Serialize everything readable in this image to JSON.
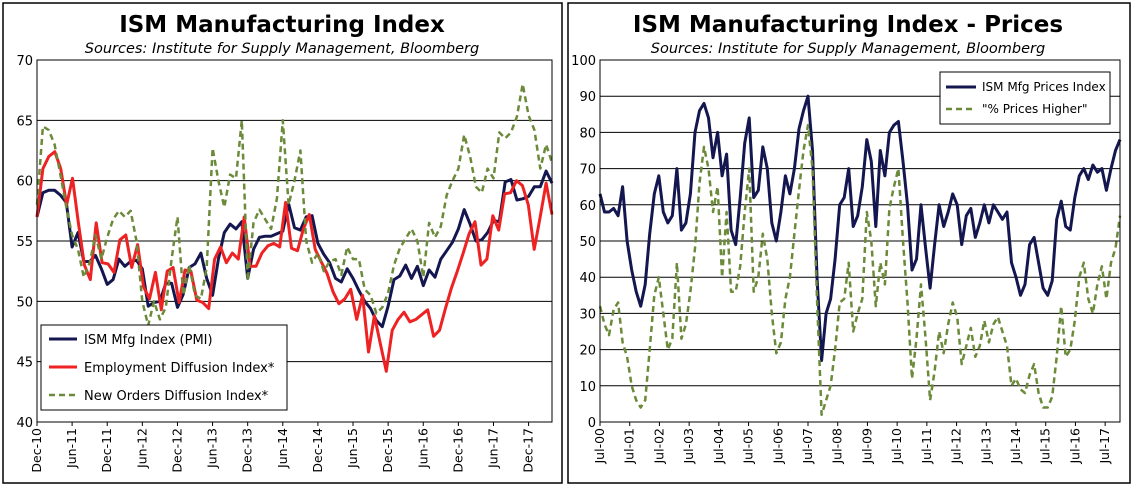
{
  "chart_data": [
    {
      "type": "line",
      "title": "ISM Manufacturing Index",
      "subtitle": "Sources: Institute for Supply Management, Bloomberg",
      "ylim": [
        40,
        70
      ],
      "yticks": [
        "40",
        "45",
        "50",
        "55",
        "60",
        "65",
        "70"
      ],
      "xticks": [
        "Dec-10",
        "Jun-11",
        "Dec-11",
        "Jun-12",
        "Dec-12",
        "Jun-13",
        "Dec-13",
        "Jun-14",
        "Dec-14",
        "Jun-15",
        "Dec-15",
        "Jun-16",
        "Dec-16",
        "Jun-17",
        "Dec-17"
      ],
      "x_start": "Dec-10",
      "x_span_months": 88,
      "grid": true,
      "legend_position": "bottom-left",
      "series": [
        {
          "name": "ISM Mfg Index (PMI)",
          "color": "#14174f",
          "dash": "",
          "width": 3,
          "values": [
            57.0,
            59.0,
            59.2,
            59.2,
            58.8,
            58.2,
            54.5,
            55.7,
            53.3,
            53.3,
            53.8,
            52.7,
            51.4,
            51.8,
            53.5,
            52.9,
            53.3,
            53.4,
            52.7,
            49.6,
            49.9,
            50.0,
            51.5,
            51.5,
            49.5,
            50.6,
            52.8,
            53.1,
            54.0,
            51.9,
            50.5,
            53.5,
            55.7,
            56.4,
            56.0,
            56.6,
            51.9,
            54.3,
            55.3,
            55.4,
            55.4,
            55.6,
            55.8,
            58.1,
            56.1,
            55.9,
            57.0,
            57.1,
            54.8,
            53.9,
            53.2,
            51.9,
            51.6,
            52.7,
            51.9,
            50.9,
            50.0,
            49.4,
            48.4,
            47.9,
            49.6,
            51.8,
            52.1,
            53.0,
            51.9,
            52.9,
            51.3,
            52.6,
            52.0,
            53.5,
            54.2,
            54.9,
            56.0,
            57.6,
            56.4,
            55.0,
            55.1,
            55.7,
            56.7,
            56.6,
            59.9,
            60.1,
            58.4,
            58.5,
            58.7,
            59.5,
            59.5,
            60.8,
            59.8
          ]
        },
        {
          "name": "Employment Diffusion Index*",
          "color": "#ee2222",
          "dash": "",
          "width": 3,
          "values": [
            57.0,
            61.0,
            62.0,
            62.4,
            61.0,
            58.0,
            60.2,
            56.5,
            53.0,
            51.8,
            56.5,
            53.2,
            53.1,
            52.4,
            55.1,
            55.5,
            52.8,
            54.7,
            51.2,
            50.2,
            52.4,
            49.3,
            52.5,
            52.8,
            49.9,
            52.6,
            52.5,
            50.1,
            49.9,
            49.4,
            53.5,
            54.5,
            53.2,
            54.0,
            53.5,
            57.0,
            52.9,
            52.9,
            54.0,
            54.6,
            54.8,
            54.5,
            58.2,
            54.4,
            54.2,
            56.0,
            57.2,
            54.3,
            53.3,
            52.3,
            50.8,
            49.8,
            50.2,
            51.0,
            48.5,
            50.5,
            45.8,
            48.8,
            46.5,
            44.2,
            47.6,
            48.5,
            49.1,
            48.3,
            48.5,
            48.9,
            49.3,
            47.1,
            47.6,
            49.4,
            51.1,
            52.5,
            54.0,
            55.6,
            56.6,
            53.0,
            53.5,
            57.1,
            55.9,
            58.9,
            59.0,
            60.0,
            59.6,
            58.0,
            54.3,
            57.0,
            59.8,
            57.2
          ]
        },
        {
          "name": "New Orders Diffusion Index*",
          "color": "#6b8a3a",
          "dash": "6,4",
          "width": 2.5,
          "values": [
            58.0,
            64.5,
            64.2,
            63.0,
            60.5,
            57.8,
            55.5,
            54.3,
            52.0,
            53.2,
            55.5,
            53.5,
            55.3,
            56.8,
            57.5,
            57.0,
            57.5,
            55.0,
            50.0,
            48.0,
            50.0,
            48.5,
            49.5,
            53.5,
            57.0,
            50.5,
            53.0,
            50.5,
            50.2,
            52.8,
            62.7,
            60.0,
            57.8,
            60.5,
            60.2,
            65.0,
            51.7,
            56.5,
            57.6,
            56.8,
            56.0,
            58.5,
            65.0,
            58.0,
            60.0,
            62.5,
            55.0,
            53.2,
            54.0,
            52.5,
            53.3,
            53.5,
            52.2,
            54.5,
            53.5,
            53.5,
            51.0,
            50.5,
            49.0,
            49.5,
            50.7,
            53.0,
            54.4,
            55.2,
            56.0,
            55.0,
            52.0,
            56.5,
            55.3,
            56.2,
            58.8,
            60.0,
            61.0,
            63.8,
            62.0,
            59.5,
            59.0,
            61.0,
            60.2,
            64.0,
            63.5,
            64.0,
            65.3,
            68.0,
            65.4,
            64.2,
            61.0,
            63.0,
            61.5
          ]
        }
      ]
    },
    {
      "type": "line",
      "title": "ISM Manufacturing Index - Prices",
      "subtitle": "Sources: Institute for Supply Management, Bloomberg",
      "ylim": [
        0,
        100
      ],
      "yticks": [
        "0",
        "10",
        "20",
        "30",
        "40",
        "50",
        "60",
        "70",
        "80",
        "90",
        "100"
      ],
      "xticks": [
        "Jul-00",
        "Jul-01",
        "Jul-02",
        "Jul-03",
        "Jul-04",
        "Jul-05",
        "Jul-06",
        "Jul-07",
        "Jul-08",
        "Jul-09",
        "Jul-10",
        "Jul-11",
        "Jul-12",
        "Jul-13",
        "Jul-14",
        "Jul-15",
        "Jul-16",
        "Jul-17"
      ],
      "x_start": "Jul-00",
      "x_span_months": 210,
      "grid": true,
      "legend_position": "top-right",
      "series": [
        {
          "name": "ISM Mfg Prices Index",
          "color": "#14174f",
          "dash": "",
          "width": 3,
          "values": [
            63,
            58,
            58,
            59,
            57,
            65,
            50,
            42,
            36,
            32,
            38,
            52,
            63,
            68,
            58,
            55,
            57,
            70,
            53,
            55,
            63,
            80,
            86,
            88,
            84,
            73,
            80,
            68,
            74,
            53,
            49,
            62,
            77,
            84,
            62,
            64,
            76,
            70,
            55,
            50,
            58,
            68,
            63,
            70,
            81,
            86,
            90,
            75,
            40,
            17,
            30,
            34,
            45,
            60,
            62,
            70,
            54,
            57,
            65,
            78,
            72,
            54,
            75,
            68,
            80,
            82,
            83,
            72,
            60,
            42,
            45,
            60,
            48,
            37,
            49,
            60,
            54,
            58,
            63,
            60,
            49,
            57,
            59,
            51,
            55,
            60,
            55,
            60,
            58,
            56,
            58,
            44,
            40,
            35,
            38,
            49,
            51,
            44,
            37,
            35,
            39,
            56,
            61,
            54,
            53,
            62,
            68,
            70,
            67,
            71,
            69,
            70,
            64,
            70,
            75,
            78
          ]
        },
        {
          "name": "\"% Prices Higher\"",
          "color": "#6b8a3a",
          "dash": "6,4",
          "width": 2.5,
          "values": [
            32,
            27,
            24,
            31,
            33,
            22,
            18,
            10,
            6,
            4,
            6,
            20,
            35,
            40,
            30,
            20,
            23,
            44,
            23,
            27,
            36,
            48,
            66,
            76,
            70,
            58,
            65,
            40,
            58,
            36,
            36,
            43,
            58,
            70,
            36,
            40,
            52,
            45,
            30,
            19,
            22,
            34,
            40,
            52,
            64,
            75,
            82,
            70,
            34,
            2,
            6,
            10,
            20,
            33,
            34,
            44,
            25,
            30,
            34,
            58,
            50,
            32,
            44,
            38,
            59,
            65,
            70,
            50,
            33,
            12,
            23,
            38,
            23,
            6,
            14,
            25,
            19,
            27,
            33,
            29,
            16,
            21,
            26,
            18,
            21,
            28,
            22,
            27,
            29,
            25,
            21,
            10,
            12,
            9,
            8,
            13,
            16,
            8,
            4,
            4,
            7,
            18,
            32,
            18,
            20,
            28,
            40,
            44,
            34,
            30,
            38,
            43,
            34,
            44,
            48,
            57
          ]
        }
      ]
    }
  ]
}
